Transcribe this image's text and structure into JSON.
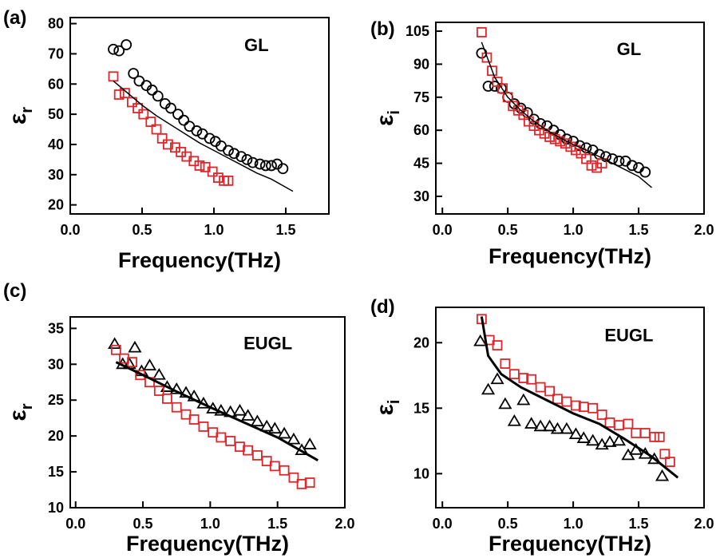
{
  "chart_data": [
    {
      "type": "scatter",
      "panel_label": "(a)",
      "annotation": "GL",
      "x_label": "Frequency(THz)",
      "y_label": {
        "text": "ε",
        "sub": "r"
      },
      "xlim": [
        0,
        1.8
      ],
      "ylim": [
        17,
        82
      ],
      "xticks": [
        {
          "value": 0,
          "label": "0.0"
        },
        0.5,
        {
          "value": 1,
          "label": "1.0"
        },
        1.5
      ],
      "yticks": [
        20,
        30,
        40,
        50,
        60,
        70,
        80
      ],
      "series": [
        {
          "mark": "circle",
          "color": "#000000",
          "x": [
            0.3,
            0.34,
            0.39,
            0.44,
            0.48,
            0.53,
            0.57,
            0.61,
            0.66,
            0.7,
            0.75,
            0.79,
            0.83,
            0.88,
            0.92,
            0.97,
            1.01,
            1.05,
            1.1,
            1.14,
            1.19,
            1.23,
            1.27,
            1.32,
            1.36,
            1.4,
            1.44,
            1.48
          ],
          "values": [
            71.5,
            71,
            73,
            63.5,
            61,
            59.5,
            58,
            56,
            53.5,
            52,
            50,
            48,
            46,
            44.5,
            43.5,
            42,
            41,
            39.5,
            38,
            37,
            36,
            35,
            34,
            33.5,
            33,
            33,
            33.5,
            32
          ]
        },
        {
          "mark": "square",
          "color": "#e0262a",
          "x": [
            0.3,
            0.34,
            0.38,
            0.43,
            0.47,
            0.51,
            0.56,
            0.6,
            0.64,
            0.68,
            0.73,
            0.77,
            0.81,
            0.86,
            0.9,
            0.94,
            0.99,
            1.03,
            1.07,
            1.1
          ],
          "values": [
            62.5,
            56.5,
            57,
            54,
            52,
            50,
            47.5,
            45,
            42,
            40,
            39,
            37.5,
            36,
            34.5,
            33,
            32.5,
            31,
            29,
            28,
            28
          ]
        },
        {
          "mark": "line",
          "color": "#000000",
          "width": 1.5,
          "x": [
            0.3,
            0.4,
            0.5,
            0.6,
            0.7,
            0.8,
            0.9,
            1.0,
            1.1,
            1.2,
            1.3,
            1.4,
            1.55
          ],
          "values": [
            61,
            57,
            53,
            49.5,
            46.5,
            43.5,
            40.5,
            38,
            35.5,
            33,
            30.5,
            28.5,
            24.5
          ]
        }
      ]
    },
    {
      "type": "scatter",
      "panel_label": "(b)",
      "annotation": "GL",
      "x_label": "Frequency(THz)",
      "y_label": {
        "text": "ε",
        "sub": "i"
      },
      "xlim": [
        -0.05,
        2.0
      ],
      "ylim": [
        22,
        109
      ],
      "xticks": [
        {
          "value": 0,
          "label": "0.0"
        },
        0.5,
        {
          "value": 1,
          "label": "1.0"
        },
        1.5,
        {
          "value": 2,
          "label": "2.0"
        }
      ],
      "yticks": [
        30,
        45,
        60,
        75,
        90,
        105
      ],
      "series": [
        {
          "mark": "circle",
          "color": "#000000",
          "x": [
            0.3,
            0.35,
            0.4,
            0.45,
            0.5,
            0.55,
            0.6,
            0.65,
            0.7,
            0.75,
            0.8,
            0.85,
            0.9,
            0.95,
            1.0,
            1.05,
            1.1,
            1.15,
            1.2,
            1.25,
            1.3,
            1.35,
            1.4,
            1.45,
            1.5,
            1.55
          ],
          "values": [
            95,
            80,
            80,
            79,
            75,
            72,
            70,
            68,
            65,
            63,
            62,
            60,
            58,
            56,
            55,
            53,
            52,
            51,
            49,
            48,
            47,
            46,
            46,
            44,
            43,
            41
          ]
        },
        {
          "mark": "square",
          "color": "#e0262a",
          "x": [
            0.3,
            0.34,
            0.38,
            0.42,
            0.46,
            0.5,
            0.54,
            0.58,
            0.62,
            0.66,
            0.7,
            0.74,
            0.78,
            0.82,
            0.86,
            0.9,
            0.94,
            0.98,
            1.02,
            1.06,
            1.1,
            1.14,
            1.18,
            1.22
          ],
          "values": [
            104.5,
            93,
            87,
            82,
            79,
            75,
            71,
            69,
            67,
            64,
            62,
            60,
            58.5,
            57,
            56,
            55,
            54,
            52.5,
            51,
            49.5,
            47,
            44,
            43,
            45
          ]
        },
        {
          "mark": "line",
          "color": "#000000",
          "width": 1.5,
          "x": [
            0.3,
            0.4,
            0.5,
            0.6,
            0.7,
            0.8,
            0.9,
            1.0,
            1.1,
            1.2,
            1.3,
            1.4,
            1.5,
            1.6
          ],
          "values": [
            100,
            84,
            75,
            69,
            64,
            60,
            56.5,
            53.5,
            51,
            48,
            45,
            42,
            39,
            34
          ]
        }
      ]
    },
    {
      "type": "scatter",
      "panel_label": "(c)",
      "annotation": "EUGL",
      "x_label": "Frequency(THz)",
      "y_label": {
        "text": "ε",
        "sub": "r"
      },
      "xlim": [
        -0.04,
        2.0
      ],
      "ylim": [
        10,
        36.6
      ],
      "xticks": [
        {
          "value": 0,
          "label": "0.0"
        },
        0.5,
        {
          "value": 1,
          "label": "1.0"
        },
        1.5,
        {
          "value": 2,
          "label": "2.0"
        }
      ],
      "yticks": [
        10,
        15,
        20,
        25,
        30,
        35
      ],
      "series": [
        {
          "mark": "triangle",
          "color": "#000000",
          "x": [
            0.29,
            0.35,
            0.4,
            0.44,
            0.49,
            0.55,
            0.62,
            0.68,
            0.75,
            0.82,
            0.88,
            0.95,
            1.02,
            1.08,
            1.15,
            1.22,
            1.28,
            1.35,
            1.42,
            1.48,
            1.55,
            1.62,
            1.68,
            1.74
          ],
          "values": [
            32.8,
            30,
            30,
            32.3,
            29,
            29.8,
            28.5,
            26.8,
            26.5,
            26,
            25.5,
            24.5,
            23.8,
            23.5,
            23.3,
            23.5,
            22.8,
            22,
            21.3,
            21,
            20.3,
            19.5,
            18,
            18.8
          ]
        },
        {
          "mark": "square",
          "color": "#e0262a",
          "x": [
            0.3,
            0.36,
            0.42,
            0.48,
            0.55,
            0.62,
            0.68,
            0.75,
            0.82,
            0.88,
            0.95,
            1.02,
            1.08,
            1.15,
            1.22,
            1.28,
            1.35,
            1.42,
            1.48,
            1.55,
            1.62,
            1.68,
            1.74
          ],
          "values": [
            32,
            30.8,
            30.3,
            28.5,
            27.5,
            26.3,
            25.2,
            24,
            23,
            22.3,
            21.3,
            20.5,
            19.8,
            19.3,
            18.5,
            18,
            17.3,
            16.5,
            15.8,
            15.2,
            14.2,
            13.3,
            13.5
          ]
        },
        {
          "mark": "line",
          "color": "#000000",
          "width": 3,
          "x": [
            0.3,
            0.5,
            0.75,
            1.0,
            1.25,
            1.5,
            1.8
          ],
          "values": [
            30.3,
            28.5,
            26.2,
            24,
            21.9,
            19.8,
            16.6
          ]
        }
      ]
    },
    {
      "type": "scatter",
      "panel_label": "(d)",
      "annotation": "EUGL",
      "x_label": "Frequency(THz)",
      "y_label": {
        "text": "ε",
        "sub": "i"
      },
      "xlim": [
        -0.05,
        2.0
      ],
      "ylim": [
        7.4,
        22.7
      ],
      "xticks": [
        {
          "value": 0,
          "label": "0.0"
        },
        0.5,
        {
          "value": 1,
          "label": "1.0"
        },
        1.5,
        {
          "value": 2,
          "label": "2.0"
        }
      ],
      "yticks": [
        10,
        15,
        20
      ],
      "series": [
        {
          "mark": "triangle",
          "color": "#000000",
          "x": [
            0.29,
            0.35,
            0.42,
            0.48,
            0.55,
            0.62,
            0.68,
            0.75,
            0.82,
            0.88,
            0.95,
            1.02,
            1.08,
            1.15,
            1.22,
            1.28,
            1.35,
            1.42,
            1.48,
            1.55,
            1.62,
            1.68
          ],
          "values": [
            20.1,
            16.4,
            17.2,
            15.3,
            14,
            15.6,
            13.8,
            13.6,
            13.6,
            13.4,
            13.4,
            13.0,
            12.7,
            12.5,
            12.2,
            12.4,
            12.5,
            11.4,
            11.8,
            11.5,
            11.1,
            9.8
          ]
        },
        {
          "mark": "square",
          "color": "#e0262a",
          "x": [
            0.3,
            0.36,
            0.42,
            0.48,
            0.55,
            0.62,
            0.68,
            0.75,
            0.82,
            0.88,
            0.95,
            1.02,
            1.08,
            1.15,
            1.22,
            1.28,
            1.35,
            1.42,
            1.48,
            1.55,
            1.62,
            1.66,
            1.7,
            1.74
          ],
          "values": [
            21.8,
            20.2,
            19.8,
            18.4,
            17.6,
            17.3,
            17.2,
            16.6,
            16.3,
            15.7,
            15.5,
            15.2,
            15.1,
            15.0,
            14.5,
            13.9,
            13.7,
            13.8,
            13.1,
            13.1,
            12.8,
            12.8,
            11.5,
            10.9
          ]
        },
        {
          "mark": "line",
          "color": "#000000",
          "width": 3,
          "x": [
            0.3,
            0.35,
            0.45,
            0.6,
            0.8,
            1.0,
            1.2,
            1.4,
            1.6,
            1.8
          ],
          "values": [
            22,
            19,
            17.6,
            16.6,
            15.6,
            14.6,
            13.8,
            12.6,
            11.3,
            9.7
          ]
        }
      ]
    }
  ]
}
